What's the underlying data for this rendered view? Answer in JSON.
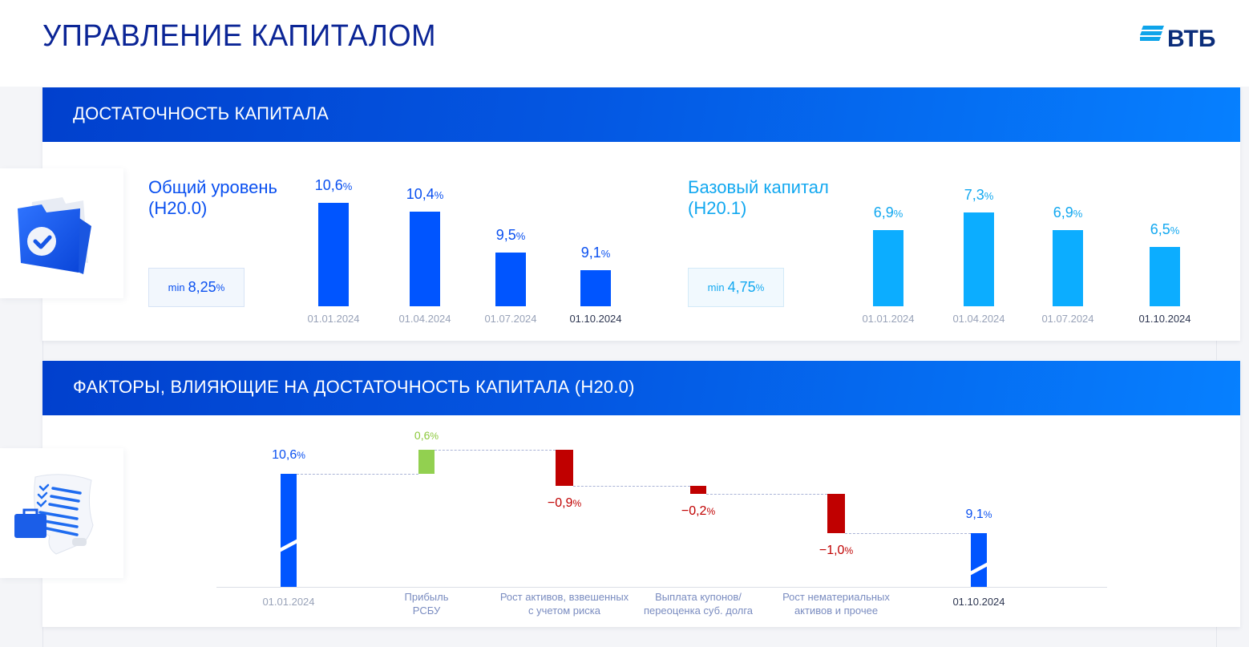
{
  "header": {
    "title": "УПРАВЛЕНИЕ КАПИТАЛОМ",
    "logo_text": "ВТБ"
  },
  "colors": {
    "brand_dark": "#0b2596",
    "bar_blue": "#0055ff",
    "bar_cyan": "#0cadff",
    "positive": "#92d050",
    "negative": "#c00000"
  },
  "section1": {
    "title": "ДОСТАТОЧНОСТЬ КАПИТАЛА",
    "icon": "folder-check-icon"
  },
  "section2": {
    "title": "ФАКТОРЫ, ВЛИЯЮЩИЕ НА ДОСТАТОЧНОСТЬ КАПИТАЛА (Н20.0)",
    "icon": "document-checklist-icon"
  },
  "chart_data": [
    {
      "type": "bar",
      "title": "Общий уровень (Н20.0)",
      "title_line1": "Общий уровень",
      "title_line2": "(Н20.0)",
      "min_label": "min",
      "min_value": "8,25",
      "unit": "%",
      "categories": [
        "01.01.2024",
        "01.04.2024",
        "01.07.2024",
        "01.10.2024"
      ],
      "values": [
        10.6,
        10.4,
        9.5,
        9.1
      ],
      "value_labels": [
        "10,6",
        "10,4",
        "9,5",
        "9,1"
      ],
      "color": "#0055ff"
    },
    {
      "type": "bar",
      "title": "Базовый капитал (Н20.1)",
      "title_line1": "Базовый капитал",
      "title_line2": "(Н20.1)",
      "min_label": "min",
      "min_value": "4,75",
      "unit": "%",
      "categories": [
        "01.01.2024",
        "01.04.2024",
        "01.07.2024",
        "01.10.2024"
      ],
      "values": [
        6.9,
        7.3,
        6.9,
        6.5
      ],
      "value_labels": [
        "6,9",
        "7,3",
        "6,9",
        "6,5"
      ],
      "color": "#0cadff"
    },
    {
      "type": "waterfall",
      "title": "ФАКТОРЫ, ВЛИЯЮЩИЕ НА ДОСТАТОЧНОСТЬ КАПИТАЛА (Н20.0)",
      "unit": "%",
      "categories": [
        [
          "01.01.2024"
        ],
        [
          "Прибыль",
          "РСБУ"
        ],
        [
          "Рост активов, взвешенных",
          "с учетом риска"
        ],
        [
          "Выплата купонов/",
          "переоценка суб. долга"
        ],
        [
          "Рост нематериальных",
          "активов и прочее"
        ],
        [
          "01.10.2024"
        ]
      ],
      "kinds": [
        "total",
        "delta",
        "delta",
        "delta",
        "delta",
        "total"
      ],
      "values": [
        10.6,
        0.6,
        -0.9,
        -0.2,
        -1.0,
        9.1
      ],
      "value_labels": [
        "10,6",
        "0,6",
        "−0,9",
        "−0,2",
        "−1,0",
        "9,1"
      ],
      "axis_break": true
    }
  ]
}
